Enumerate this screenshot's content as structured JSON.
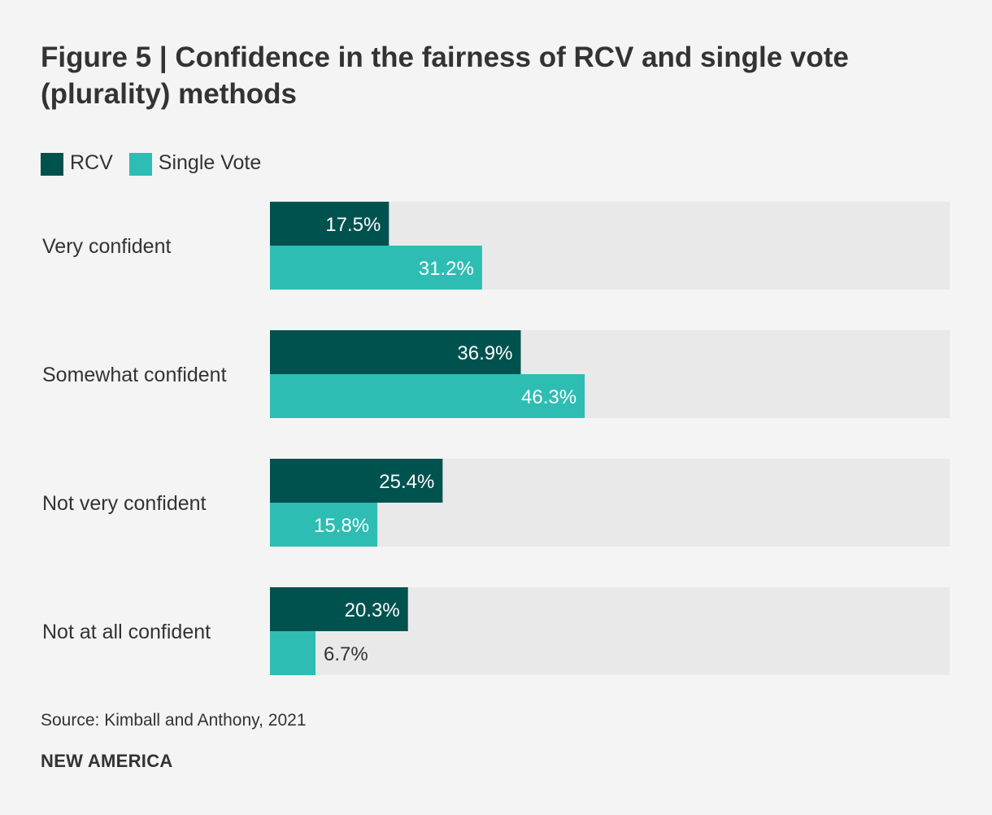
{
  "chart_data": {
    "type": "bar",
    "orientation": "horizontal",
    "title": "Figure 5 | Confidence in the fairness of RCV and single vote (plurality) methods",
    "categories": [
      "Very confident",
      "Somewhat confident",
      "Not very confident",
      "Not at all confident"
    ],
    "series": [
      {
        "name": "RCV",
        "color": "#00524f",
        "values": [
          17.5,
          36.9,
          25.4,
          20.3
        ],
        "labels": [
          "17.5%",
          "36.9%",
          "25.4%",
          "20.3%"
        ]
      },
      {
        "name": "Single Vote",
        "color": "#2ebdb3",
        "values": [
          31.2,
          46.3,
          15.8,
          6.7
        ],
        "labels": [
          "31.2%",
          "46.3%",
          "15.8%",
          "6.7%"
        ]
      }
    ],
    "xlim": [
      0,
      100
    ],
    "track_color": "#e9e9e9",
    "value_suffix": "%"
  },
  "source": "Source: Kimball and Anthony, 2021",
  "brand": "NEW AMERICA"
}
